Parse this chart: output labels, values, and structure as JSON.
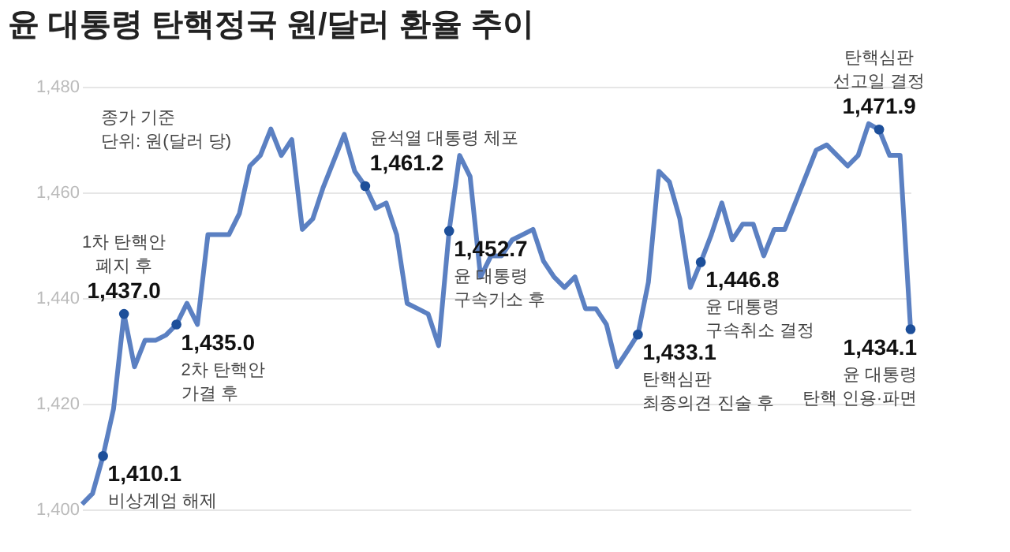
{
  "chart_data": {
    "type": "line",
    "title": "윤 대통령 탄핵정국 원/달러 환율 추이",
    "categories": [
      null,
      null,
      null,
      null,
      null,
      null,
      null,
      null,
      null,
      null,
      null,
      null,
      null,
      null,
      null,
      null,
      null,
      null,
      null,
      null,
      null,
      null,
      null,
      null,
      null,
      null,
      null,
      null,
      null,
      null,
      null,
      null,
      null,
      null,
      null,
      null,
      null,
      null,
      null,
      null,
      null,
      null,
      null,
      null,
      null,
      null,
      null,
      null,
      null,
      null,
      null,
      null,
      null,
      null,
      null,
      null,
      null,
      null,
      null,
      null,
      null,
      null,
      null,
      null,
      null,
      null,
      null,
      null,
      null,
      null,
      null,
      null,
      null,
      null,
      null,
      null,
      null,
      null,
      null,
      null
    ],
    "series": [
      {
        "color": "#5b80c2",
        "values": [
          1401,
          1403,
          1410.1,
          1419,
          1437.0,
          1427,
          1432,
          1432,
          1433,
          1435.0,
          1439,
          1435,
          1452,
          1452,
          1452,
          1456,
          1465,
          1467,
          1472,
          1467,
          1470,
          1453,
          1455,
          1461,
          1466,
          1471,
          1464,
          1461.2,
          1457,
          1458,
          1452,
          1439,
          1438,
          1437,
          1431,
          1452.7,
          1467,
          1463,
          1444,
          1448,
          1448,
          1451,
          1452,
          1453,
          1447,
          1444,
          1442,
          1444,
          1438,
          1438,
          1435,
          1427,
          1430,
          1433.1,
          1443,
          1464,
          1462,
          1455,
          1442,
          1446.8,
          1452,
          1458,
          1451,
          1454,
          1454,
          1448,
          1453,
          1453,
          1458,
          1463,
          1468,
          1469,
          1467,
          1465,
          1467,
          1473,
          1471.9,
          1467,
          1467,
          1434.1
        ],
        "value_labels": [
          null,
          null,
          "1,410.1",
          null,
          "1,437.0",
          null,
          null,
          null,
          null,
          "1,435.0",
          null,
          null,
          null,
          null,
          null,
          null,
          null,
          null,
          null,
          null,
          null,
          null,
          null,
          null,
          null,
          null,
          null,
          "1,461.2",
          null,
          null,
          null,
          null,
          null,
          null,
          null,
          "1,452.7",
          null,
          null,
          null,
          null,
          null,
          null,
          null,
          null,
          null,
          null,
          null,
          null,
          null,
          null,
          null,
          null,
          null,
          "1,433.1",
          null,
          null,
          null,
          null,
          null,
          "1,446.8",
          null,
          null,
          null,
          null,
          null,
          null,
          null,
          null,
          null,
          null,
          null,
          null,
          null,
          null,
          null,
          null,
          "1,471.9",
          null,
          null,
          "1,434.1"
        ]
      }
    ],
    "ylim": [
      1400,
      1480
    ],
    "yticks": [
      {
        "value": 1400,
        "label": "1,400"
      },
      {
        "value": 1420,
        "label": "1,420"
      },
      {
        "value": 1440,
        "label": "1,440"
      },
      {
        "value": 1460,
        "label": "1,460"
      },
      {
        "value": 1480,
        "label": "1,480"
      }
    ],
    "grid": "y",
    "annotations": [
      "종가 기준\n단위: 원(달러 당)",
      "비상계엄 해제",
      "1차 탄핵안\n폐지 후",
      "2차 탄핵안\n가결 후",
      "윤석열 대통령 체포",
      "윤 대통령\n구속기소 후",
      "탄핵심판\n최종의견 진술 후",
      "윤 대통령\n구속취소 결정",
      "탄핵심판\n선고일 결정",
      "윤 대통령\n탄핵 인용·파면"
    ]
  }
}
